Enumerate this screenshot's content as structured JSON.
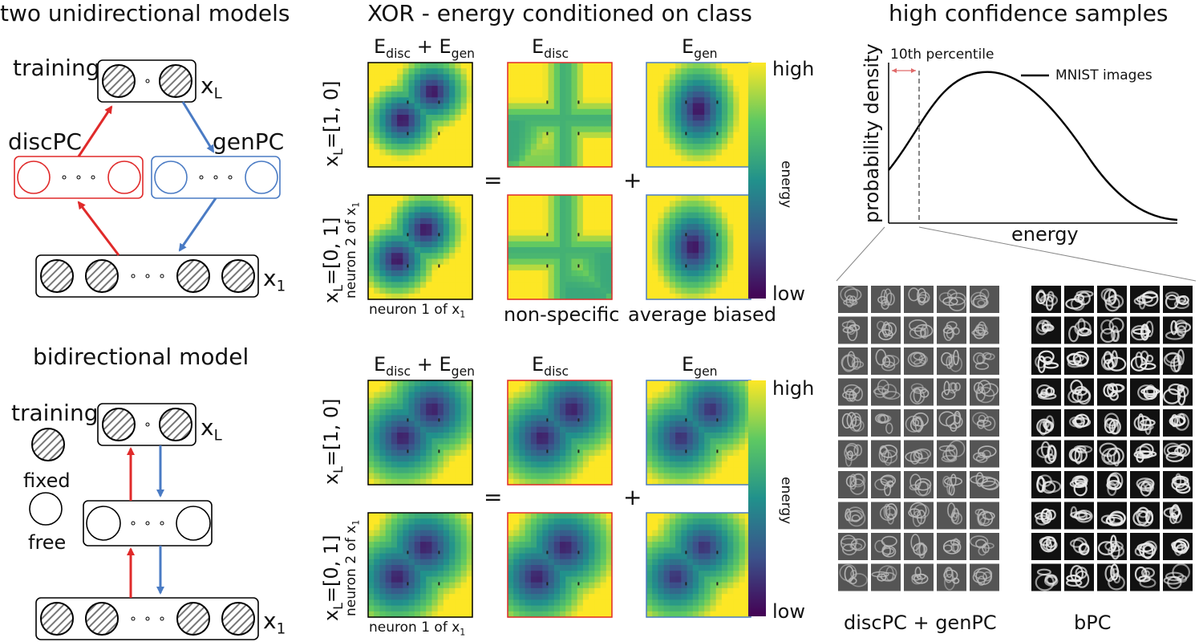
{
  "left": {
    "title_top": "two unidirectional models",
    "training": "training",
    "disc": "discPC",
    "gen": "genPC",
    "xl": "x",
    "xl_sub": "L",
    "x1": "x",
    "x1_sub": "1",
    "title_bottom": "bidirectional model",
    "training2": "training",
    "fixed": "fixed",
    "free": "free",
    "colors": {
      "red": "#e02a2a",
      "blue": "#4a7bc4"
    }
  },
  "middle": {
    "title": "XOR - energy conditioned on class",
    "col_head_sum": "+",
    "e": "E",
    "disc_sub": "disc",
    "gen_sub": "gen",
    "row1_a": "x",
    "row1_sub": "L",
    "row1_b": "=[1, 0]",
    "row2_a": "x",
    "row2_sub": "L",
    "row2_b": "=[0, 1]",
    "ylab": "neuron 2 of x",
    "ylab_sub": "1",
    "xlab": "neuron 1 of x",
    "xlab_sub": "1",
    "eq": "=",
    "plus": "+",
    "nonspecific": "non-specific",
    "avgbiased": "average biased",
    "cbar_high": "high",
    "cbar_low": "low",
    "cbar_label": "energy"
  },
  "right": {
    "title": "high confidence samples",
    "percentile": "10th percentile",
    "legend": "MNIST images",
    "ylabel": "probability density",
    "xlabel": "energy",
    "grid1_label": "discPC + genPC",
    "grid2_label": "bPC"
  }
}
